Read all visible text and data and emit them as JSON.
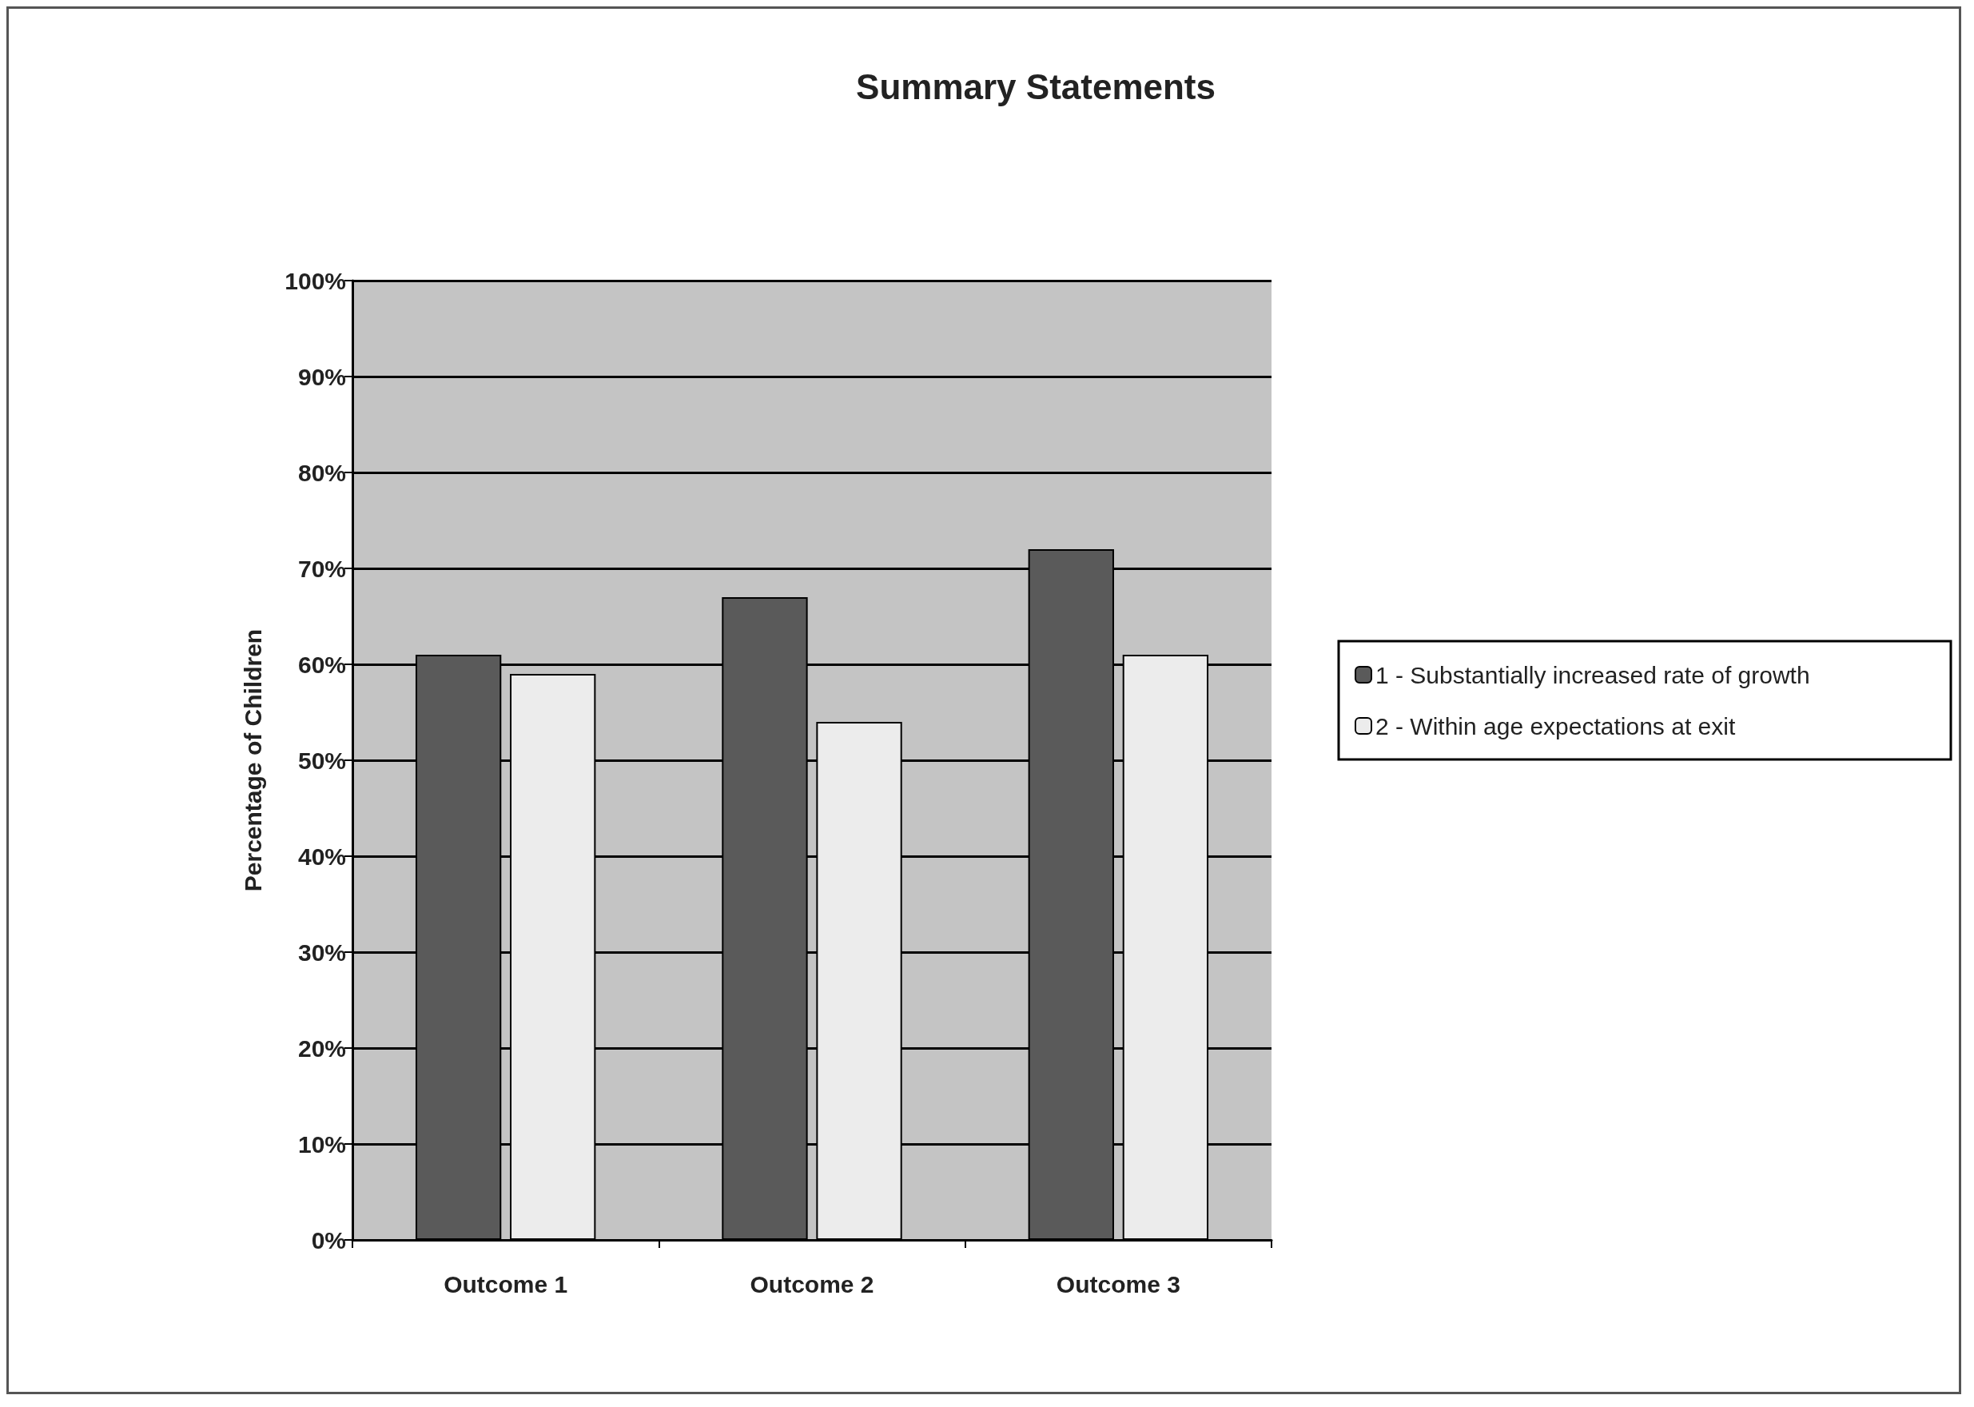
{
  "chart_data": {
    "type": "bar",
    "title": "Summary Statements",
    "ylabel": "Percentage of Children",
    "categories": [
      "Outcome 1",
      "Outcome 2",
      "Outcome 3"
    ],
    "series": [
      {
        "name": "1 - Substantially increased rate of growth",
        "color": "#5a5a5a",
        "values": [
          61,
          67,
          72
        ]
      },
      {
        "name": "2 - Within age expectations at exit",
        "color": "#ececec",
        "values": [
          59,
          54,
          61
        ]
      }
    ],
    "ylim": [
      0,
      100
    ],
    "yticks": [
      {
        "value": 0,
        "label": "0%"
      },
      {
        "value": 10,
        "label": "10%"
      },
      {
        "value": 20,
        "label": "20%"
      },
      {
        "value": 30,
        "label": "30%"
      },
      {
        "value": 40,
        "label": "40%"
      },
      {
        "value": 50,
        "label": "50%"
      },
      {
        "value": 60,
        "label": "60%"
      },
      {
        "value": 70,
        "label": "70%"
      },
      {
        "value": 80,
        "label": "80%"
      },
      {
        "value": 90,
        "label": "90%"
      },
      {
        "value": 100,
        "label": "100%"
      }
    ],
    "grid": "y",
    "legend": "right"
  }
}
